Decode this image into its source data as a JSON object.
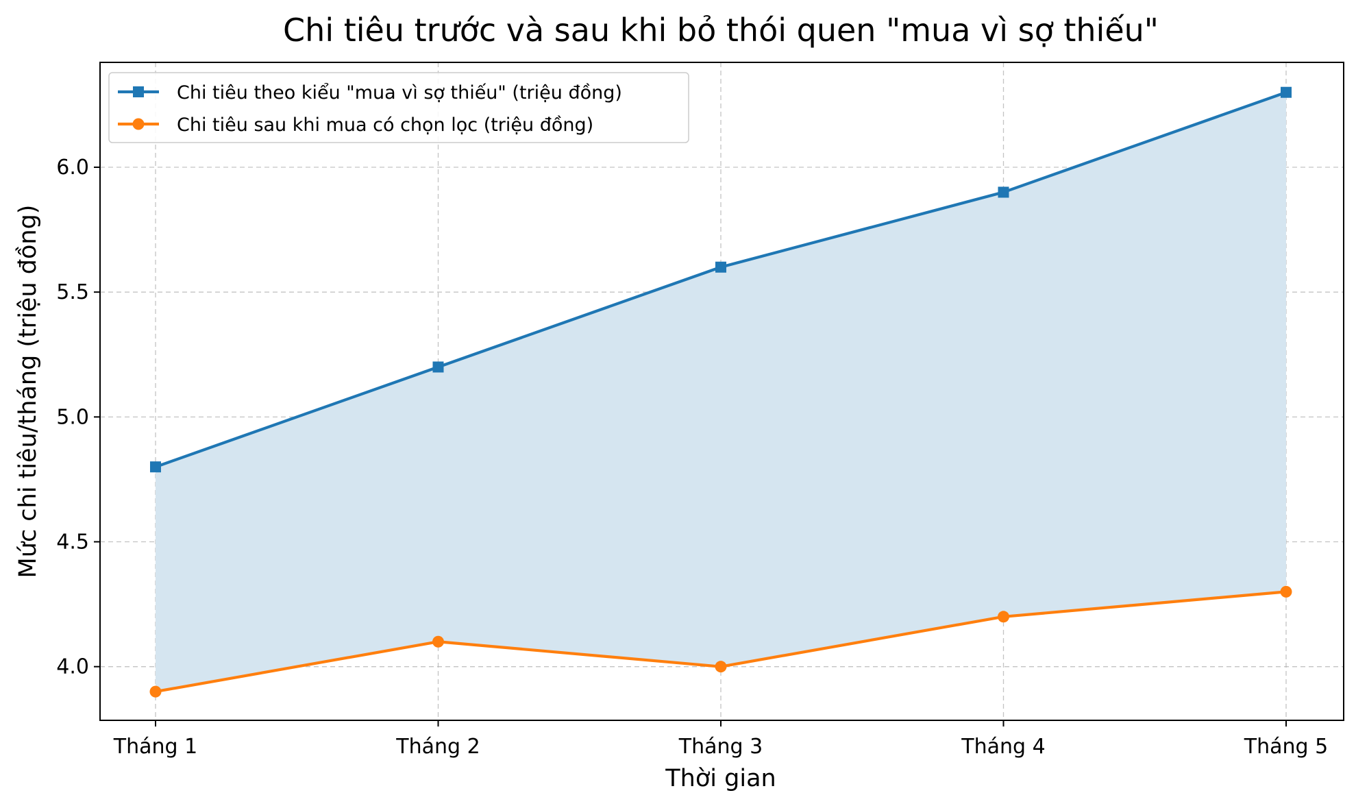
{
  "chart_data": {
    "type": "line",
    "title": "Chi tiêu trước và sau khi bỏ thói quen \"mua vì sợ thiếu\"",
    "xlabel": "Thời gian",
    "ylabel": "Mức chi tiêu/tháng (triệu đồng)",
    "categories": [
      "Tháng 1",
      "Tháng 2",
      "Tháng 3",
      "Tháng 4",
      "Tháng 5"
    ],
    "ylim": [
      3.785,
      6.42
    ],
    "yticks": [
      4.0,
      4.5,
      5.0,
      5.5,
      6.0
    ],
    "ytick_labels": [
      "4.0",
      "4.5",
      "5.0",
      "5.5",
      "6.0"
    ],
    "grid": true,
    "legend_position": "top-left",
    "fill_between_series": true,
    "fill_color": "#d5e5f0",
    "series": [
      {
        "name": "Chi tiêu theo kiểu \"mua vì sợ thiếu\" (triệu đồng)",
        "values": [
          4.8,
          5.2,
          5.6,
          5.9,
          6.3
        ],
        "color": "#1f77b4",
        "marker": "square"
      },
      {
        "name": "Chi tiêu sau khi mua có chọn lọc (triệu đồng)",
        "values": [
          3.9,
          4.1,
          4.0,
          4.2,
          4.3
        ],
        "color": "#ff7f0e",
        "marker": "circle"
      }
    ]
  }
}
